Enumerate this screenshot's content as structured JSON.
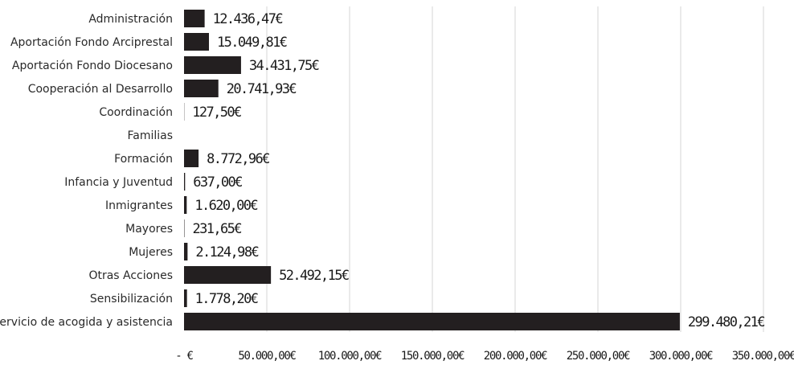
{
  "chart_data": {
    "type": "bar",
    "orientation": "horizontal",
    "categories": [
      "Administración",
      "Aportación Fondo Arciprestal",
      "Aportación Fondo Diocesano",
      "Cooperación al Desarrollo",
      "Coordinación",
      "Familias",
      "Formación",
      "Infancia y Juventud",
      "Inmigrantes",
      "Mayores",
      "Mujeres",
      "Otras Acciones",
      "Sensibilización",
      "Servicio de acogida y asistencia"
    ],
    "values": [
      12436.47,
      15049.81,
      34431.75,
      20741.93,
      127.5,
      0,
      8772.96,
      637.0,
      1620.0,
      231.65,
      2124.98,
      52492.15,
      1778.2,
      299480.21
    ],
    "value_labels": [
      "12.436,47€",
      "15.049,81€",
      "34.431,75€",
      "20.741,93€",
      "127,50€",
      "",
      "8.772,96€",
      "637,00€",
      "1.620,00€",
      "231,65€",
      "2.124,98€",
      "52.492,15€",
      "1.778,20€",
      "299.480,21€"
    ],
    "x_ticks": [
      0,
      50000,
      100000,
      150000,
      200000,
      250000,
      300000,
      350000
    ],
    "x_tick_labels": [
      "- €",
      "50.000,00€",
      "100.000,00€",
      "150.000,00€",
      "200.000,00€",
      "250.000,00€",
      "300.000,00€",
      "350.000,00€"
    ],
    "xlim": [
      0,
      350000
    ],
    "grid": true,
    "legend": "none",
    "bar_color": "#231f20",
    "title": "",
    "xlabel": "",
    "ylabel": ""
  }
}
